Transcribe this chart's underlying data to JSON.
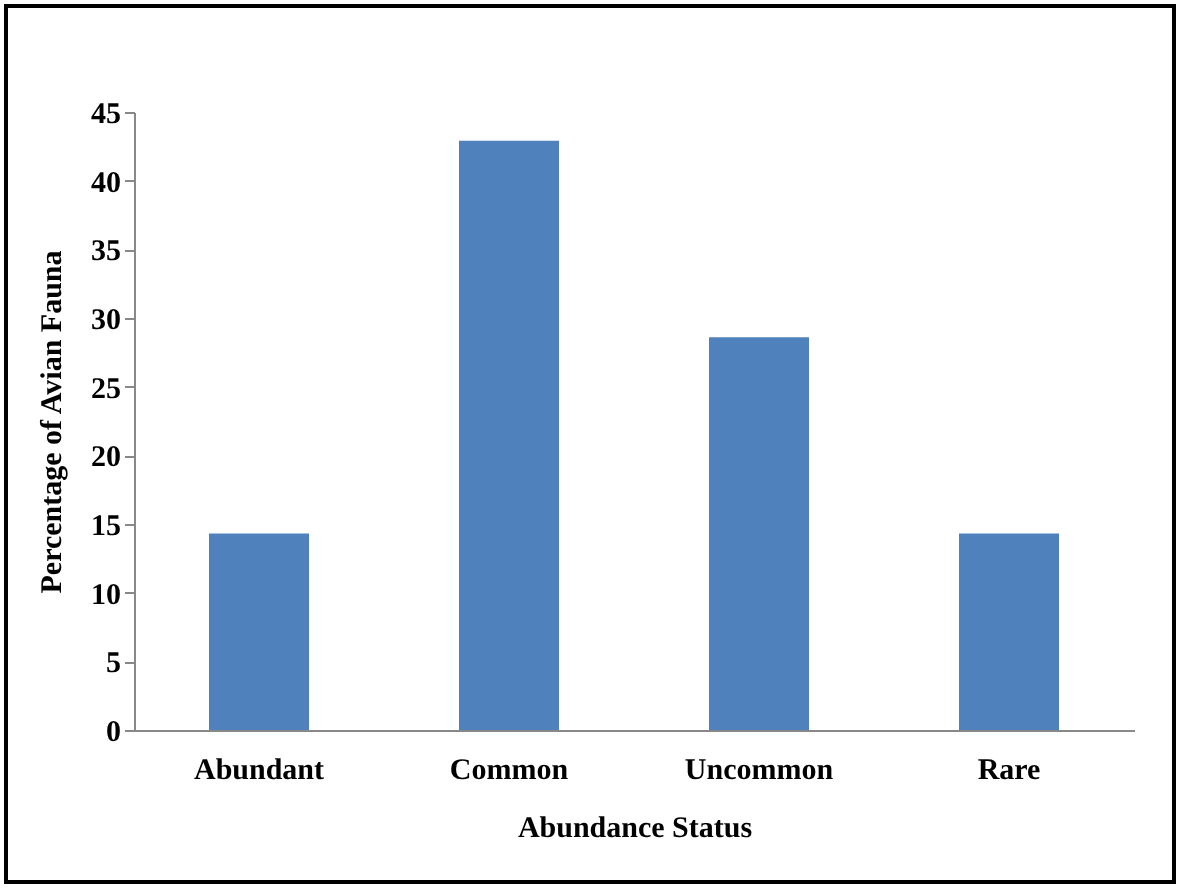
{
  "chart_data": {
    "type": "bar",
    "xlabel": "Abundance Status",
    "ylabel": "Percentage of Avian Fauna",
    "categories": [
      "Abundant",
      "Common",
      "Uncommon",
      "Rare"
    ],
    "values": [
      14.3,
      42.9,
      28.6,
      14.3
    ],
    "color": "#4f81bd",
    "ylim": [
      0,
      45
    ],
    "yticks": [
      0,
      5,
      10,
      15,
      20,
      25,
      30,
      35,
      40,
      45
    ],
    "grid": false,
    "legend": false
  }
}
